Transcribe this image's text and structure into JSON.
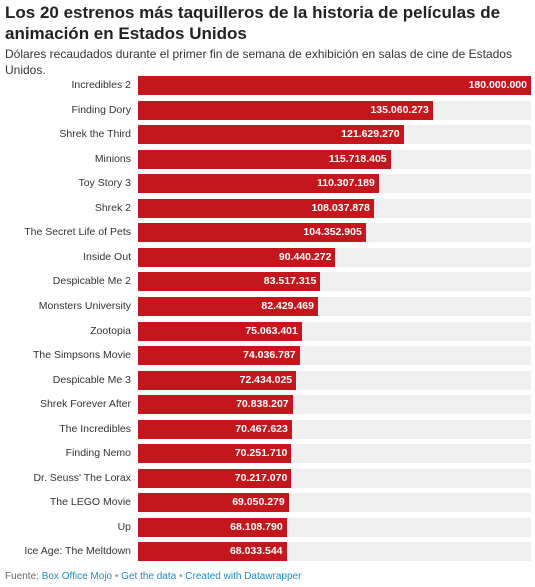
{
  "chart_data": {
    "type": "bar",
    "orientation": "horizontal",
    "title": "Los 20 estrenos más taquilleros de la historia de películas de animación en Estados Unidos",
    "subtitle": "Dólares recaudados durante el primer fin de semana de exhibición en salas de cine de Estados Unidos.",
    "categories": [
      "Incredibles 2",
      "Finding Dory",
      "Shrek the Third",
      "Minions",
      "Toy Story 3",
      "Shrek 2",
      "The Secret Life of Pets",
      "Inside Out",
      "Despicable Me 2",
      "Monsters University",
      "Zootopia",
      "The Simpsons Movie",
      "Despicable Me 3",
      "Shrek Forever After",
      "The Incredibles",
      "Finding Nemo",
      "Dr. Seuss' The Lorax",
      "The LEGO Movie",
      "Up",
      "Ice Age: The Meltdown"
    ],
    "values": [
      180000000,
      135060273,
      121629270,
      115718405,
      110307189,
      108037878,
      104352905,
      90440272,
      83517315,
      82429469,
      75063401,
      74036787,
      72434025,
      70838207,
      70467623,
      70251710,
      70217070,
      69050279,
      68108790,
      68033544
    ],
    "value_labels": [
      "180.000.000",
      "135.060.273",
      "121.629.270",
      "115.718.405",
      "110.307.189",
      "108.037.878",
      "104.352.905",
      "90.440.272",
      "83.517.315",
      "82.429.469",
      "75.063.401",
      "74.036.787",
      "72.434.025",
      "70.838.207",
      "70.467.623",
      "70.251.710",
      "70.217.070",
      "69.050.279",
      "68.108.790",
      "68.033.544"
    ],
    "xlim": [
      0,
      180000000
    ],
    "bar_color": "#c4161c",
    "track_color": "#efefef",
    "grid": false,
    "legend": "none"
  },
  "footer": {
    "source_label": "Fuente: ",
    "source_link": "Box Office Mojo",
    "separator": " • ",
    "get_data": "Get the data",
    "created_with": "Created with Datawrapper"
  }
}
